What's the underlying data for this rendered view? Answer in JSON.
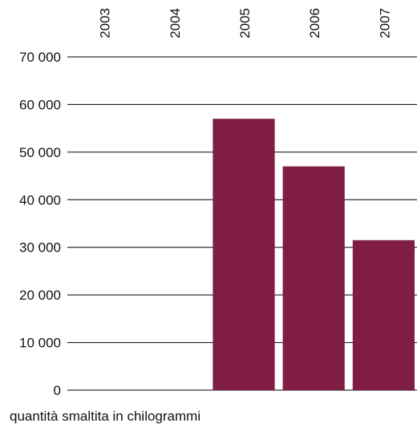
{
  "chart_data": {
    "type": "bar",
    "categories": [
      "2003",
      "2004",
      "2005",
      "2006",
      "2007"
    ],
    "values": [
      0,
      0,
      57000,
      47000,
      31500
    ],
    "ylim": [
      0,
      70000
    ],
    "yticks": [
      "0",
      "10 000",
      "20 000",
      "30 000",
      "40 000",
      "50 000",
      "60 000",
      "70 000"
    ],
    "ytick_values": [
      0,
      10000,
      20000,
      30000,
      40000,
      50000,
      60000,
      70000
    ],
    "ylabel": "quantità smaltita in chilogrammi",
    "bar_color": "#7f1d45",
    "gridline_color": "#000000",
    "grid": true
  }
}
